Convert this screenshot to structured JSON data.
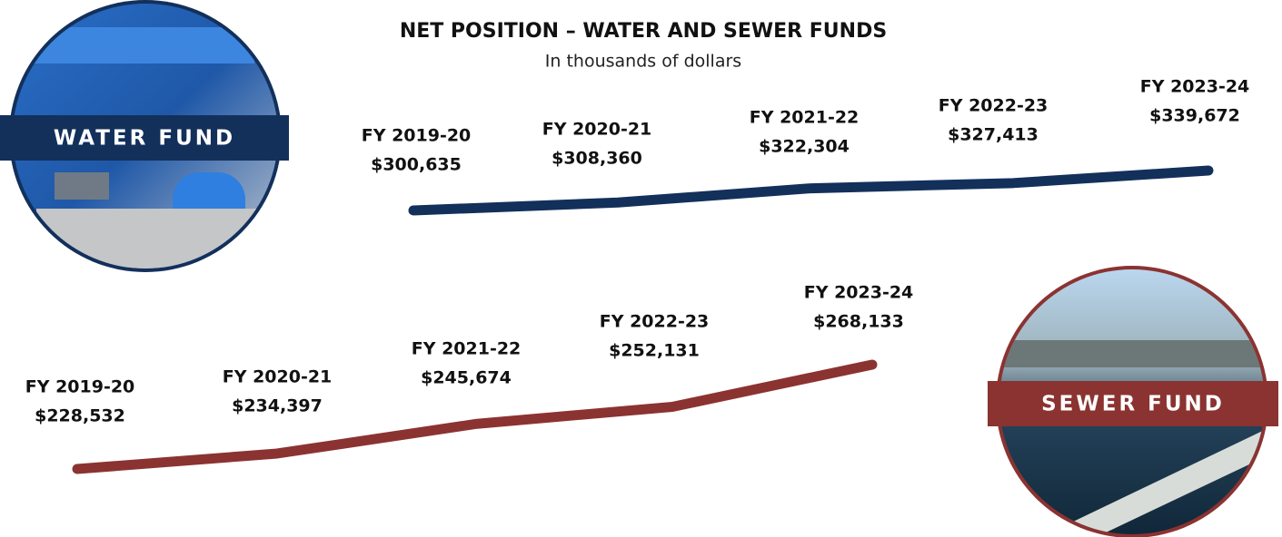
{
  "title": "NET POSITION – WATER AND SEWER FUNDS",
  "subtitle": "In thousands of dollars",
  "chart_data": [
    {
      "type": "line",
      "title": "WATER FUND",
      "color": "#13305b",
      "categories": [
        "FY 2019-20",
        "FY 2020-21",
        "FY 2021-22",
        "FY 2022-23",
        "FY 2023-24"
      ],
      "values": [
        300635,
        308360,
        322304,
        327413,
        339672
      ],
      "value_labels": [
        "$300,635",
        "$308,360",
        "$322,304",
        "$327,413",
        "$339,672"
      ]
    },
    {
      "type": "line",
      "title": "SEWER FUND",
      "color": "#8b3331",
      "categories": [
        "FY 2019-20",
        "FY 2020-21",
        "FY 2021-22",
        "FY 2022-23",
        "FY 2023-24"
      ],
      "values": [
        228532,
        234397,
        245674,
        252131,
        268133
      ],
      "value_labels": [
        "$228,532",
        "$234,397",
        "$245,674",
        "$252,131",
        "$268,133"
      ]
    }
  ]
}
